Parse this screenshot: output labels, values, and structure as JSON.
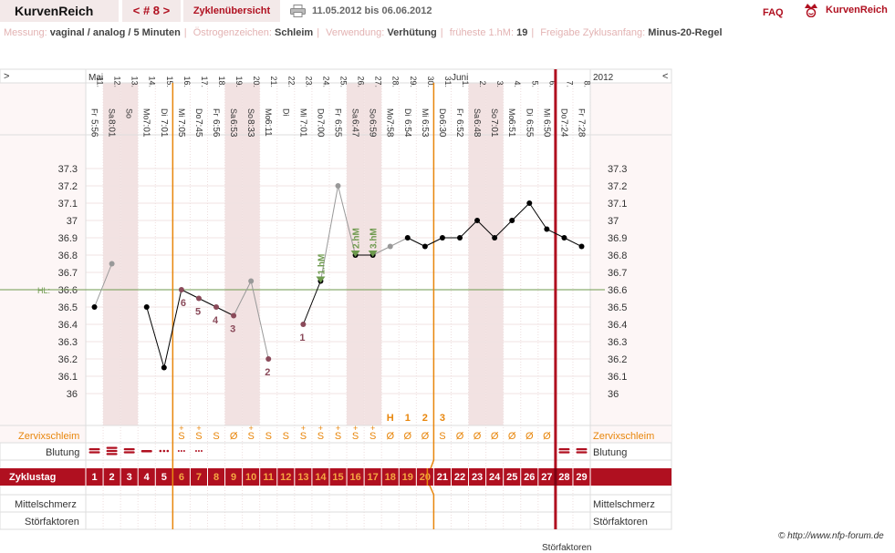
{
  "header": {
    "app_title": "KurvenReich",
    "cycle_tab": "< # 8 >",
    "overview_tab": "Zyklenübersicht",
    "date_range": "11.05.2012 bis 06.06.2012",
    "faq": "FAQ",
    "brand": "KurvenReich",
    "icons": [
      "print-icon",
      "kurvenreich-logo-icon"
    ]
  },
  "settings": [
    {
      "label": "Messung:",
      "value": "vaginal / analog / 5 Minuten"
    },
    {
      "label": "Östrogenzeichen:",
      "value": "Schleim"
    },
    {
      "label": "Verwendung:",
      "value": "Verhütung"
    },
    {
      "label": "früheste 1.hM:",
      "value": "19"
    },
    {
      "label": "Freigabe Zyklusanfang:",
      "value": "Minus-20-Regel"
    }
  ],
  "nav": {
    "prev": ">",
    "next": "<",
    "year": "2012",
    "months": [
      "Mai",
      "Juni"
    ]
  },
  "days": [
    {
      "date": "11.",
      "weekday": "Fr",
      "time": "5:56",
      "weekend": false
    },
    {
      "date": "12.",
      "weekday": "Sa",
      "time": "8:01",
      "weekend": true
    },
    {
      "date": "13.",
      "weekday": "So",
      "time": "",
      "weekend": true
    },
    {
      "date": "14.",
      "weekday": "Mo",
      "time": "7:01",
      "weekend": false
    },
    {
      "date": "15.",
      "weekday": "Di",
      "time": "7:01",
      "weekend": false
    },
    {
      "date": "16.",
      "weekday": "Mi",
      "time": "7:05",
      "weekend": false
    },
    {
      "date": "17.",
      "weekday": "Do",
      "time": "7:45",
      "weekend": false
    },
    {
      "date": "18.",
      "weekday": "Fr",
      "time": "6:56",
      "weekend": false
    },
    {
      "date": "19.",
      "weekday": "Sa",
      "time": "6:53",
      "weekend": true
    },
    {
      "date": "20.",
      "weekday": "So",
      "time": "8:33",
      "weekend": true
    },
    {
      "date": "21.",
      "weekday": "Mo",
      "time": "6:11",
      "weekend": false
    },
    {
      "date": "22.",
      "weekday": "Di",
      "time": "",
      "weekend": false
    },
    {
      "date": "23.",
      "weekday": "Mi",
      "time": "7:01",
      "weekend": false
    },
    {
      "date": "24.",
      "weekday": "Do",
      "time": "7:00",
      "weekend": false
    },
    {
      "date": "25.",
      "weekday": "Fr",
      "time": "6:55",
      "weekend": false
    },
    {
      "date": "26.",
      "weekday": "Sa",
      "time": "6:47",
      "weekend": true
    },
    {
      "date": "27.",
      "weekday": "So",
      "time": "6:59",
      "weekend": true
    },
    {
      "date": "28.",
      "weekday": "Mo",
      "time": "7:58",
      "weekend": false
    },
    {
      "date": "29.",
      "weekday": "Di",
      "time": "6:54",
      "weekend": false
    },
    {
      "date": "30.",
      "weekday": "Mi",
      "time": "6:53",
      "weekend": false
    },
    {
      "date": "31.",
      "weekday": "Do",
      "time": "6:30",
      "weekend": false
    },
    {
      "date": "1.",
      "weekday": "Fr",
      "time": "6:52",
      "weekend": false
    },
    {
      "date": "2.",
      "weekday": "Sa",
      "time": "6:48",
      "weekend": true
    },
    {
      "date": "3.",
      "weekday": "So",
      "time": "7:01",
      "weekend": true
    },
    {
      "date": "4.",
      "weekday": "Mo",
      "time": "6:51",
      "weekend": false
    },
    {
      "date": "5.",
      "weekday": "Di",
      "time": "6:55",
      "weekend": false
    },
    {
      "date": "6.",
      "weekday": "Mi",
      "time": "6:50",
      "weekend": false
    },
    {
      "date": "7.",
      "weekday": "Do",
      "time": "7:24",
      "weekend": false
    },
    {
      "date": "8.",
      "weekday": "Fr",
      "time": "7:28",
      "weekend": false
    }
  ],
  "y_ticks": [
    "37.3",
    "37.2",
    "37.1",
    "37",
    "36.9",
    "36.8",
    "36.7",
    "36.6",
    "36.5",
    "36.4",
    "36.3",
    "36.2",
    "36.1",
    "36"
  ],
  "hl_label": "HL:",
  "chart_data": {
    "type": "line",
    "ylim": [
      36.0,
      37.3
    ],
    "coverline": 36.6,
    "segments": [
      [
        {
          "day": 1,
          "temp": 36.5,
          "status": "valid"
        },
        {
          "day": 2,
          "temp": 36.75,
          "status": "excluded"
        }
      ],
      [
        {
          "day": 4,
          "temp": 36.5,
          "status": "valid"
        },
        {
          "day": 5,
          "temp": 36.15,
          "status": "valid"
        },
        {
          "day": 6,
          "temp": 36.6,
          "status": "valid",
          "count": "6"
        },
        {
          "day": 7,
          "temp": 36.55,
          "status": "valid",
          "count": "5"
        },
        {
          "day": 8,
          "temp": 36.5,
          "status": "valid",
          "count": "4"
        },
        {
          "day": 9,
          "temp": 36.45,
          "status": "valid",
          "count": "3"
        },
        {
          "day": 10,
          "temp": 36.65,
          "status": "excluded"
        },
        {
          "day": 11,
          "temp": 36.2,
          "status": "valid",
          "count": "2"
        }
      ],
      [
        {
          "day": 13,
          "temp": 36.4,
          "status": "valid",
          "count": "1"
        },
        {
          "day": 14,
          "temp": 36.65,
          "status": "valid",
          "hm": "1.hM"
        },
        {
          "day": 15,
          "temp": 37.2,
          "status": "excluded"
        },
        {
          "day": 16,
          "temp": 36.8,
          "status": "valid",
          "hm": "2.hM"
        },
        {
          "day": 17,
          "temp": 36.8,
          "status": "valid",
          "hm": "3.hM"
        },
        {
          "day": 18,
          "temp": 36.85,
          "status": "excluded"
        },
        {
          "day": 19,
          "temp": 36.9,
          "status": "valid"
        },
        {
          "day": 20,
          "temp": 36.85,
          "status": "valid"
        },
        {
          "day": 21,
          "temp": 36.9,
          "status": "valid"
        },
        {
          "day": 22,
          "temp": 36.9,
          "status": "valid"
        },
        {
          "day": 23,
          "temp": 37.0,
          "status": "valid"
        },
        {
          "day": 24,
          "temp": 36.9,
          "status": "valid"
        },
        {
          "day": 25,
          "temp": 37.0,
          "status": "valid"
        },
        {
          "day": 26,
          "temp": 37.1,
          "status": "valid"
        },
        {
          "day": 27,
          "temp": 36.95,
          "status": "valid"
        },
        {
          "day": 28,
          "temp": 36.9,
          "status": "valid"
        },
        {
          "day": 29,
          "temp": 36.85,
          "status": "valid"
        }
      ]
    ]
  },
  "peak_labels": [
    {
      "day": 18,
      "text": "H"
    },
    {
      "day": 19,
      "text": "1"
    },
    {
      "day": 20,
      "text": "2"
    },
    {
      "day": 21,
      "text": "3"
    }
  ],
  "rows": {
    "zervix": {
      "label": "Zervixschleim",
      "values": [
        "",
        "",
        "",
        "",
        "",
        "S+",
        "S+",
        "S",
        "Ø",
        "S+",
        "S",
        "S",
        "S+",
        "S+",
        "S+",
        "S+",
        "S+",
        "Ø",
        "Ø",
        "Ø",
        "S",
        "Ø",
        "Ø",
        "Ø",
        "Ø",
        "Ø",
        "Ø",
        "",
        ""
      ]
    },
    "blutung": {
      "label": "Blutung",
      "values": [
        "heavy",
        "very-heavy",
        "heavy",
        "medium",
        "light",
        "spotting",
        "spotting",
        "",
        "",
        "",
        "",
        "",
        "",
        "",
        "",
        "",
        "",
        "",
        "",
        "",
        "",
        "",
        "",
        "",
        "",
        "",
        "",
        "heavy",
        "heavy"
      ]
    },
    "zyklustag": {
      "label": "Zyklustag",
      "values": [
        "1",
        "2",
        "3",
        "4",
        "5",
        "6",
        "7",
        "8",
        "9",
        "10",
        "11",
        "12",
        "13",
        "14",
        "15",
        "16",
        "17",
        "18",
        "19",
        "20",
        "21",
        "22",
        "23",
        "24",
        "25",
        "26",
        "27",
        "28",
        "29"
      ]
    },
    "mittelschmerz": {
      "label": "Mittelschmerz"
    },
    "stoerfaktoren": {
      "label": "Störfaktoren"
    }
  },
  "markers": {
    "infertile_start_day": 6,
    "fertile_end_day": 20,
    "cycle_end_day": 27
  },
  "colors": {
    "accent": "#b01020",
    "orange": "#e8860c",
    "coverline": "#6e9a4e",
    "weekend": "#f2e2e2",
    "valid_point": "#000000",
    "excluded_point": "#999999",
    "count_label": "#8a4a5a",
    "hm_marker": "#6e9a4e"
  },
  "footer": {
    "copyright": "© http://www.nfp-forum.de",
    "cut_text": "Störfaktoren"
  }
}
